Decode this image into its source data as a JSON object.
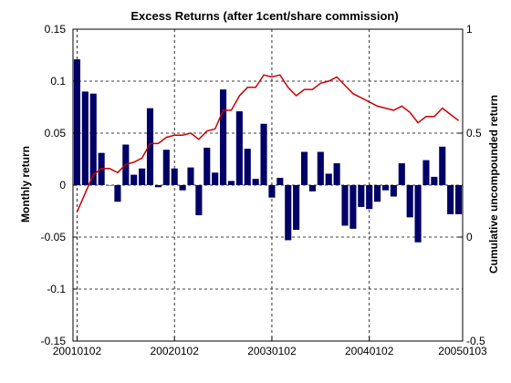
{
  "chart_data": {
    "type": "bar",
    "title": "Excess Returns (after 1cent/share commission)",
    "xlabel": "",
    "ylabel": "Monthly return",
    "y2label": "Cumulative uncompounded return",
    "ylim": [
      -0.15,
      0.15
    ],
    "y2lim": [
      -0.5,
      1
    ],
    "yticks": [
      "-0.15",
      "-0.1",
      "-0.05",
      "0",
      "0.05",
      "0.1",
      "0.15"
    ],
    "y2ticks": [
      "-0.5",
      "0",
      "0.5",
      "1"
    ],
    "xticks": [
      "20010102",
      "20020102",
      "20030102",
      "20040102",
      "20050103"
    ],
    "grid": true,
    "colors": {
      "bars": "#000066",
      "line": "#cc0000",
      "grid": "#000000"
    },
    "series": [
      {
        "type": "bar",
        "axis": "left",
        "values": [
          0.121,
          0.09,
          0.088,
          0.031,
          0.0,
          -0.016,
          0.039,
          0.01,
          0.016,
          0.074,
          -0.002,
          0.034,
          0.016,
          -0.005,
          0.017,
          -0.029,
          0.036,
          0.012,
          0.092,
          0.004,
          0.071,
          0.035,
          0.006,
          0.059,
          -0.012,
          0.007,
          -0.053,
          -0.043,
          0.032,
          -0.006,
          0.032,
          0.011,
          0.021,
          -0.039,
          -0.042,
          -0.021,
          -0.023,
          -0.016,
          -0.005,
          -0.011,
          0.021,
          -0.031,
          -0.055,
          0.024,
          0.008,
          0.037,
          -0.028,
          -0.028
        ]
      },
      {
        "type": "line",
        "axis": "right",
        "values": [
          0.12,
          0.21,
          0.3,
          0.33,
          0.33,
          0.31,
          0.35,
          0.36,
          0.38,
          0.45,
          0.45,
          0.48,
          0.49,
          0.49,
          0.5,
          0.47,
          0.51,
          0.52,
          0.61,
          0.61,
          0.68,
          0.72,
          0.72,
          0.78,
          0.77,
          0.78,
          0.72,
          0.68,
          0.71,
          0.71,
          0.74,
          0.75,
          0.77,
          0.73,
          0.69,
          0.67,
          0.65,
          0.63,
          0.62,
          0.61,
          0.63,
          0.6,
          0.55,
          0.58,
          0.58,
          0.62,
          0.59,
          0.56
        ]
      }
    ]
  }
}
